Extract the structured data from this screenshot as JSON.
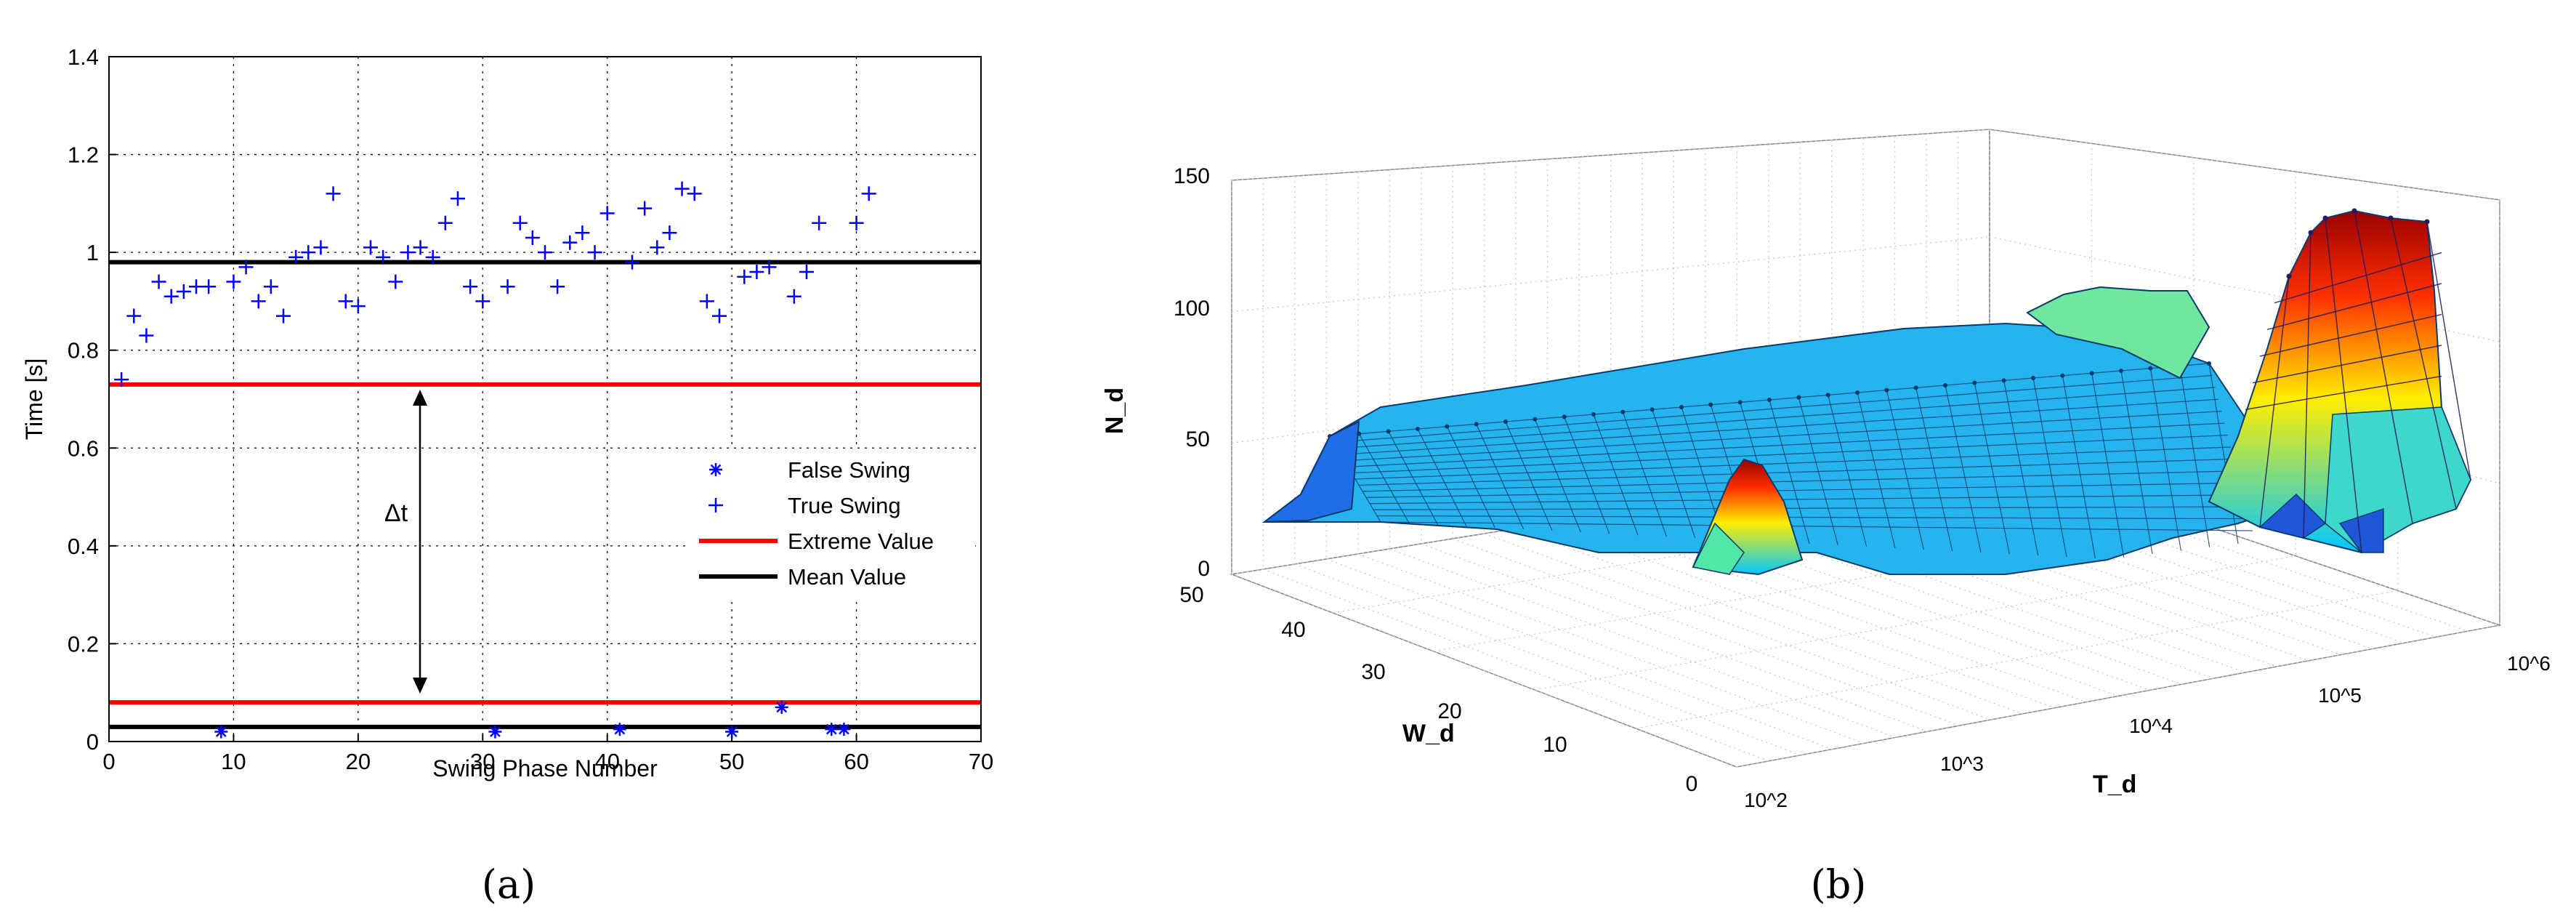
{
  "chart_data": [
    {
      "panel": "(a)",
      "type": "scatter",
      "title": "",
      "xlabel": "Swing Phase Number",
      "ylabel": "Time [s]",
      "xlim": [
        0,
        70
      ],
      "ylim": [
        0,
        1.4
      ],
      "xticks": [
        "0",
        "10",
        "20",
        "30",
        "40",
        "50",
        "60",
        "70"
      ],
      "yticks": [
        "0",
        "0.2",
        "0.4",
        "0.6",
        "0.8",
        "1",
        "1.2",
        "1.4"
      ],
      "grid": true,
      "legend_position": "center-right",
      "annotation": "Δt",
      "series": [
        {
          "name": "False Swing",
          "marker": "*",
          "color": "#0000ff",
          "points": [
            [
              9,
              0.02
            ],
            [
              31,
              0.02
            ],
            [
              41,
              0.025
            ],
            [
              50,
              0.02
            ],
            [
              54,
              0.07
            ],
            [
              58,
              0.025
            ],
            [
              59,
              0.025
            ]
          ]
        },
        {
          "name": "True Swing",
          "marker": "+",
          "color": "#0000ff",
          "points": [
            [
              1,
              0.74
            ],
            [
              2,
              0.87
            ],
            [
              3,
              0.83
            ],
            [
              4,
              0.94
            ],
            [
              5,
              0.91
            ],
            [
              6,
              0.92
            ],
            [
              7,
              0.93
            ],
            [
              8,
              0.93
            ],
            [
              10,
              0.94
            ],
            [
              11,
              0.97
            ],
            [
              12,
              0.9
            ],
            [
              13,
              0.93
            ],
            [
              14,
              0.87
            ],
            [
              15,
              0.99
            ],
            [
              16,
              1.0
            ],
            [
              17,
              1.01
            ],
            [
              18,
              1.12
            ],
            [
              19,
              0.9
            ],
            [
              20,
              0.89
            ],
            [
              21,
              1.01
            ],
            [
              22,
              0.99
            ],
            [
              23,
              0.94
            ],
            [
              24,
              1.0
            ],
            [
              25,
              1.01
            ],
            [
              26,
              0.99
            ],
            [
              27,
              1.06
            ],
            [
              28,
              1.11
            ],
            [
              29,
              0.93
            ],
            [
              30,
              0.9
            ],
            [
              32,
              0.93
            ],
            [
              33,
              1.06
            ],
            [
              34,
              1.03
            ],
            [
              35,
              1.0
            ],
            [
              36,
              0.93
            ],
            [
              37,
              1.02
            ],
            [
              38,
              1.04
            ],
            [
              39,
              1.0
            ],
            [
              40,
              1.08
            ],
            [
              42,
              0.98
            ],
            [
              43,
              1.09
            ],
            [
              44,
              1.01
            ],
            [
              45,
              1.04
            ],
            [
              46,
              1.13
            ],
            [
              47,
              1.12
            ],
            [
              48,
              0.9
            ],
            [
              49,
              0.87
            ],
            [
              51,
              0.95
            ],
            [
              52,
              0.96
            ],
            [
              53,
              0.97
            ],
            [
              55,
              0.91
            ],
            [
              56,
              0.96
            ],
            [
              57,
              1.06
            ],
            [
              60,
              1.06
            ],
            [
              61,
              1.12
            ]
          ]
        },
        {
          "name": "Extreme Value",
          "type": "hline",
          "color": "#ff0000",
          "values": [
            0.73,
            0.08
          ]
        },
        {
          "name": "Mean  Value",
          "type": "hline",
          "color": "#000000",
          "values": [
            0.98,
            0.03
          ]
        }
      ],
      "legend": [
        "False Swing",
        "True Swing",
        "Extreme Value",
        "Mean  Value"
      ]
    },
    {
      "panel": "(b)",
      "type": "surface3d",
      "title": "",
      "zlabel": "N_d",
      "ylabel": "W_d",
      "xlabel": "T_d",
      "zlim": [
        0,
        150
      ],
      "zticks": [
        "0",
        "50",
        "100",
        "150"
      ],
      "yticks": [
        "0",
        "10",
        "20",
        "30",
        "40",
        "50"
      ],
      "xticks": [
        "10^2",
        "10^3",
        "10^4",
        "10^5",
        "10^6"
      ],
      "x_scale": "log",
      "colormap": "jet",
      "grid": true
    }
  ],
  "captions": {
    "a": "(a)",
    "b": "(b)"
  }
}
